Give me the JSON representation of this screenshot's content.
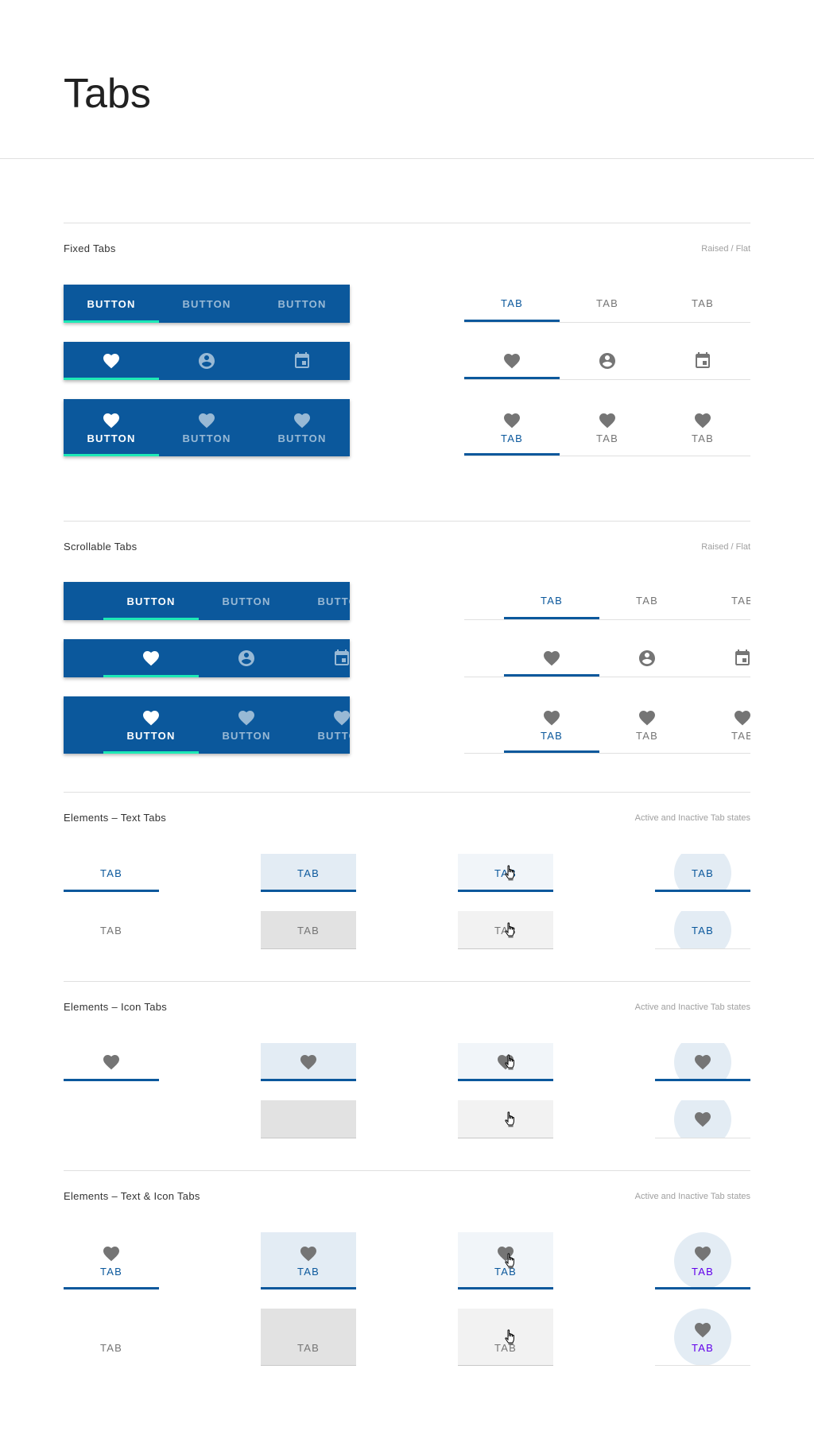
{
  "header": {
    "title": "Tabs"
  },
  "sections": [
    {
      "title": "Fixed Tabs",
      "note": "Raised / Flat"
    },
    {
      "title": "Scrollable Tabs",
      "note": "Raised / Flat"
    },
    {
      "title": "Elements – Text Tabs",
      "note": "Active and Inactive Tab states"
    },
    {
      "title": "Elements – Icon Tabs",
      "note": "Active and Inactive Tab states"
    },
    {
      "title": "Elements – Text & Icon Tabs",
      "note": "Active and Inactive Tab states"
    }
  ],
  "raised_label": "BUTTON",
  "flat_label": "TAB",
  "icons": [
    "heart-icon",
    "account-circle-icon",
    "calendar-icon"
  ],
  "colors": {
    "primary": "#0b589c",
    "indicator": "#1de9b6",
    "inactive": "#757575",
    "focus_label": "#6200ea",
    "active_bg": "#e3ecf4",
    "hover_bg": "#f1f5f9",
    "pressed_bg": "#e2e2e2",
    "inactive_hover_bg": "#f2f2f2"
  },
  "states": [
    "default",
    "pressed",
    "hover",
    "focused"
  ]
}
